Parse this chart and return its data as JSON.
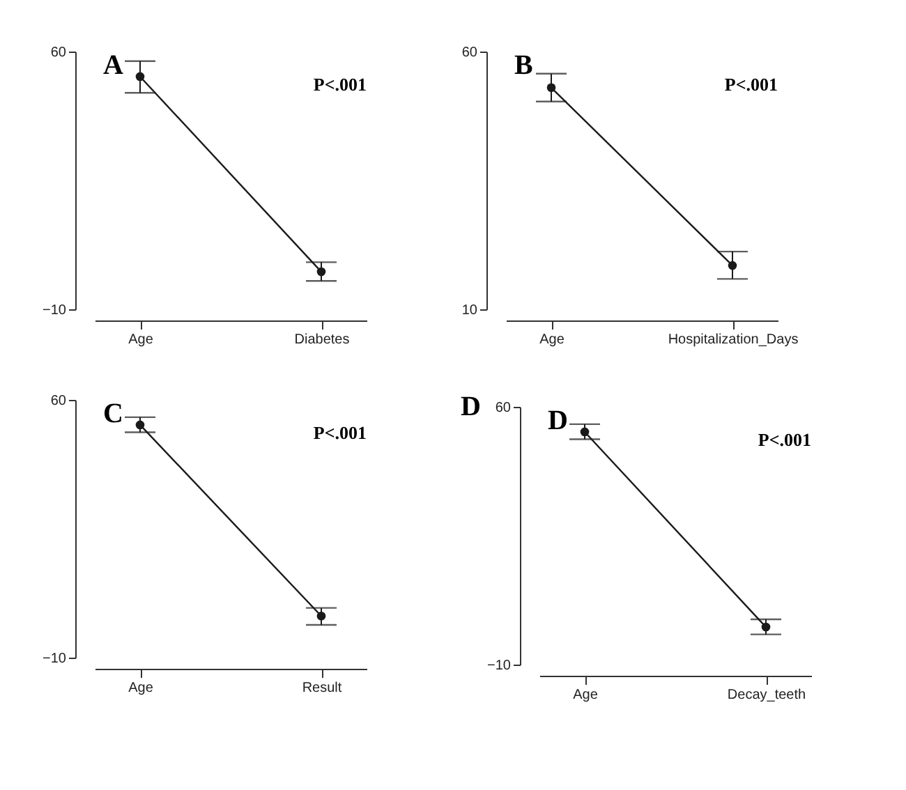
{
  "chart_data": [
    {
      "type": "line",
      "title": "A",
      "categories": [
        "Age",
        "Diabetes"
      ],
      "values": [
        53.2,
        0.2
      ],
      "errors": [
        [
          48.8,
          57.4
        ],
        [
          -2.3,
          2.8
        ]
      ],
      "ylim": [
        -10,
        60
      ],
      "yticks": [
        -10,
        60
      ],
      "marker": "circle",
      "line_style": "solid",
      "annotations": [
        "P<.001"
      ],
      "color": "#1a1a1a"
    },
    {
      "type": "line",
      "title": "B",
      "categories": [
        "Age",
        "Hospitalization_Days"
      ],
      "values": [
        53,
        18.5
      ],
      "errors": [
        [
          50.3,
          55.7
        ],
        [
          15.9,
          21.2
        ]
      ],
      "ylim": [
        10,
        60
      ],
      "yticks": [
        10,
        60
      ],
      "marker": "circle",
      "line_style": "solid",
      "annotations": [
        "P<.001"
      ],
      "color": "#1a1a1a"
    },
    {
      "type": "line",
      "title": "C",
      "categories": [
        "Age",
        "Result"
      ],
      "values": [
        53.2,
        1.3
      ],
      "errors": [
        [
          51.2,
          55.3
        ],
        [
          -1.1,
          3.5
        ]
      ],
      "ylim": [
        -10,
        60
      ],
      "yticks": [
        -10,
        60
      ],
      "marker": "circle",
      "line_style": "solid",
      "annotations": [
        "P<.001"
      ],
      "color": "#1a1a1a"
    },
    {
      "type": "line",
      "title": "D",
      "categories": [
        "Age",
        "Decay_teeth"
      ],
      "values": [
        53.2,
        0.2
      ],
      "errors": [
        [
          51.2,
          55.3
        ],
        [
          -1.8,
          2.3
        ]
      ],
      "ylim": [
        -10,
        60
      ],
      "yticks": [
        -10,
        60
      ],
      "marker": "circle",
      "line_style": "solid",
      "annotations": [
        "D",
        "P<.001"
      ],
      "color": "#1a1a1a"
    }
  ]
}
